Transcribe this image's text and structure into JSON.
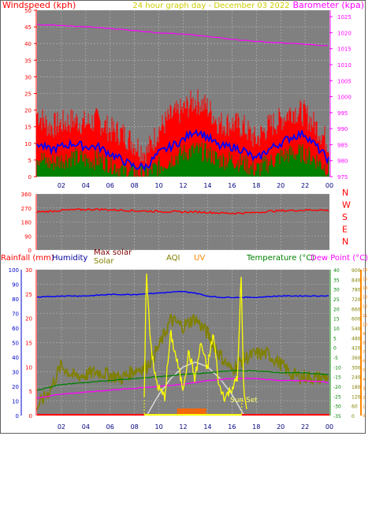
{
  "header": {
    "left_title": "Windspeed (kph)",
    "center_title": "24 hour graph day - December 03 2022",
    "right_title": "Barometer (kpa)"
  },
  "colors": {
    "plot_bg": "#808080",
    "grid": "#b8b8b8",
    "gust": "#ff0000",
    "avg_wind": "#0000ff",
    "wind_low": "#008000",
    "barometer": "#ff00ff",
    "wind_dir": "#ff0000",
    "humidity": "#0000ff",
    "temperature": "#008000",
    "dew_point": "#ff00ff",
    "solar": "#808000",
    "max_solar": "#d8d8d8",
    "uv": "#ffff00",
    "uv_bars": "#ff6600",
    "rain": "#ff0000",
    "daylight": "#ffff00"
  },
  "chart_data": [
    {
      "type": "line",
      "name": "wind-barometer",
      "x_ticks": [
        "02",
        "04",
        "06",
        "08",
        "10",
        "12",
        "14",
        "16",
        "18",
        "20",
        "22",
        "00"
      ],
      "x_range_hours": [
        0,
        24
      ],
      "y_left": {
        "label": "Windspeed (kph)",
        "ticks": [
          "0",
          "5",
          "10",
          "15",
          "20",
          "25",
          "30",
          "35",
          "40",
          "45",
          "50"
        ],
        "range": [
          0,
          50
        ]
      },
      "y_right": {
        "label": "Barometer (kpa)",
        "ticks": [
          "975",
          "980",
          "985",
          "990",
          "995",
          "1000",
          "1005",
          "1010",
          "1015",
          "1020",
          "1025"
        ],
        "range": [
          975,
          1027
        ]
      },
      "grid": true,
      "series": [
        {
          "name": "gust",
          "x": [
            0,
            1,
            2,
            3,
            4,
            5,
            6,
            7,
            8,
            9,
            10,
            11,
            12,
            13,
            14,
            15,
            16,
            17,
            18,
            19,
            20,
            21,
            22,
            23,
            24
          ],
          "values": [
            19,
            15,
            16,
            17,
            16,
            17,
            14,
            13,
            10,
            7,
            14,
            18,
            20,
            23,
            21,
            16,
            16,
            15,
            11,
            15,
            17,
            20,
            19,
            15,
            10
          ]
        },
        {
          "name": "avg",
          "x": [
            0,
            1,
            2,
            3,
            4,
            5,
            6,
            7,
            8,
            9,
            10,
            11,
            12,
            13,
            14,
            15,
            16,
            17,
            18,
            19,
            20,
            21,
            22,
            23,
            24
          ],
          "values": [
            10,
            8,
            9,
            10,
            9,
            9,
            7,
            5,
            3,
            3,
            7,
            9,
            11,
            14,
            12,
            9,
            9,
            8,
            5,
            8,
            10,
            12,
            13,
            9,
            5
          ]
        },
        {
          "name": "low",
          "x": [
            0,
            1,
            2,
            3,
            4,
            5,
            6,
            7,
            8,
            9,
            10,
            11,
            12,
            13,
            14,
            15,
            16,
            17,
            18,
            19,
            20,
            21,
            22,
            23,
            24
          ],
          "values": [
            6,
            4,
            5,
            6,
            5,
            5,
            4,
            2,
            1,
            1,
            3,
            5,
            7,
            8,
            7,
            5,
            5,
            4,
            2,
            4,
            6,
            7,
            7,
            5,
            2
          ]
        },
        {
          "name": "barometer",
          "x": [
            0,
            1,
            2,
            3,
            4,
            5,
            6,
            7,
            8,
            9,
            10,
            11,
            12,
            13,
            14,
            15,
            16,
            17,
            18,
            19,
            20,
            21,
            22,
            23,
            24
          ],
          "values": [
            1022.5,
            1022.4,
            1022.2,
            1022,
            1021.8,
            1021.6,
            1021.3,
            1021,
            1020.7,
            1020.3,
            1020.0,
            1019.8,
            1019.5,
            1019.2,
            1018.8,
            1018.4,
            1018.0,
            1017.6,
            1017.3,
            1017.0,
            1016.8,
            1016.6,
            1016.4,
            1016.1,
            1015.8
          ]
        }
      ]
    },
    {
      "type": "line",
      "name": "wind-direction",
      "y_left": {
        "ticks": [
          "0",
          "90",
          "180",
          "270",
          "360"
        ],
        "range": [
          0,
          360
        ]
      },
      "y_right": {
        "ticks": [
          "N",
          "W",
          "S",
          "E",
          "N"
        ]
      },
      "series": [
        {
          "name": "direction",
          "x": [
            0,
            1,
            2,
            3,
            4,
            5,
            6,
            7,
            8,
            9,
            10,
            11,
            12,
            13,
            14,
            15,
            16,
            17,
            18,
            19,
            20,
            21,
            22,
            23,
            24
          ],
          "values": [
            245,
            248,
            255,
            258,
            260,
            262,
            258,
            256,
            252,
            250,
            248,
            246,
            244,
            245,
            242,
            238,
            236,
            238,
            240,
            248,
            252,
            254,
            256,
            258,
            254
          ]
        }
      ]
    },
    {
      "type": "line",
      "name": "weather-multi",
      "legend": {
        "rainfall": "Rainfall (mm)",
        "humidity": "Humidity",
        "max_solar": "Max solar",
        "solar": "Solar",
        "aqi": "AQI",
        "uv": "UV",
        "temperature": "Temperature (°C)",
        "dew_point": "Dew Point (°C)",
        "sunset": "Sun Set"
      },
      "axes": {
        "humidity_ticks": [
          "0",
          "10",
          "20",
          "30",
          "40",
          "50",
          "60",
          "70",
          "80",
          "90",
          "100"
        ],
        "rain_ticks": [
          "0",
          "5",
          "10",
          "15",
          "20",
          "25",
          "30"
        ],
        "temp_ticks": [
          "-35",
          "-30",
          "-25",
          "-20",
          "-15",
          "-10",
          "-5",
          "0",
          "5",
          "10",
          "15",
          "20",
          "25",
          "30",
          "35",
          "40"
        ],
        "solar_ticks": [
          "0",
          "60",
          "120",
          "180",
          "240",
          "300",
          "360",
          "420",
          "480",
          "540",
          "600",
          "660",
          "720",
          "780",
          "840",
          "900"
        ],
        "uv_ticks": [
          "0",
          "1",
          "2",
          "3",
          "4",
          "5",
          "6",
          "7",
          "8",
          "9",
          "10",
          "11",
          "12",
          "13",
          "14",
          "15",
          "16"
        ]
      },
      "series": [
        {
          "name": "humidity",
          "x": [
            0,
            2,
            4,
            6,
            8,
            10,
            12,
            13,
            14,
            15,
            16,
            18,
            20,
            22,
            24
          ],
          "values": [
            81,
            82,
            82,
            83,
            83,
            84,
            85,
            84,
            82,
            81,
            81,
            81,
            82,
            82,
            82
          ]
        },
        {
          "name": "temperature",
          "x": [
            0,
            2,
            4,
            6,
            8,
            10,
            12,
            14,
            16,
            18,
            20,
            22,
            24
          ],
          "values": [
            -22,
            -19,
            -18,
            -17,
            -16,
            -15,
            -14,
            -13,
            -12,
            -12,
            -13,
            -13,
            -14
          ]
        },
        {
          "name": "dew_point",
          "x": [
            0,
            2,
            4,
            6,
            8,
            10,
            12,
            14,
            16,
            18,
            20,
            22,
            24
          ],
          "values": [
            -26,
            -24,
            -23,
            -22,
            -21,
            -20,
            -19,
            -17,
            -16,
            -16,
            -17,
            -17,
            -18
          ]
        },
        {
          "name": "solar",
          "x": [
            0,
            1,
            2,
            3,
            4,
            5,
            6,
            7,
            8,
            9,
            10,
            11,
            12,
            13,
            14,
            15,
            16,
            17,
            18,
            19,
            20,
            21,
            22,
            23,
            24
          ],
          "values": [
            50,
            150,
            310,
            240,
            250,
            270,
            250,
            230,
            280,
            300,
            420,
            590,
            550,
            600,
            510,
            380,
            280,
            350,
            380,
            380,
            320,
            250,
            240,
            230,
            240
          ]
        },
        {
          "name": "max_solar",
          "x": [
            9,
            10,
            11,
            12,
            13,
            14,
            15,
            16,
            17
          ],
          "values": [
            0,
            130,
            230,
            300,
            330,
            300,
            230,
            130,
            0
          ]
        },
        {
          "name": "uv",
          "x": [
            8.8,
            9,
            9.3,
            9.6,
            10,
            10.5,
            11,
            11.5,
            12,
            12.5,
            13,
            13.5,
            14,
            14.5,
            15,
            15.5,
            16,
            16.5,
            16.7,
            16.8,
            17,
            17.3
          ],
          "values": [
            0,
            16,
            9,
            5,
            3,
            2,
            9,
            6,
            3,
            7,
            4,
            8,
            5,
            9,
            3,
            2,
            3,
            4,
            12,
            15,
            3,
            0
          ]
        }
      ],
      "daylight_hours": [
        8.8,
        16.8
      ],
      "sunset_hour": 16.8
    }
  ],
  "chart2_x_ticks": [
    "02",
    "04",
    "06",
    "08",
    "10",
    "12",
    "14",
    "16",
    "18",
    "20",
    "22",
    "00"
  ]
}
